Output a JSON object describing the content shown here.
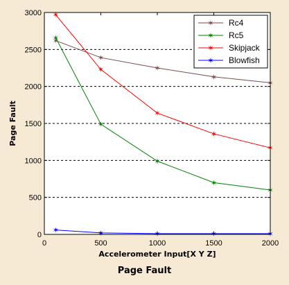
{
  "caption": "Page Fault",
  "chart_data": {
    "type": "line",
    "title": "",
    "xlabel": "Accelerometer Input[X Y Z]",
    "ylabel": "Page Fault",
    "x": [
      100,
      500,
      1000,
      1500,
      2000
    ],
    "xlim": [
      0,
      2000
    ],
    "ylim": [
      0,
      3000
    ],
    "xticks": [
      0,
      500,
      1000,
      1500,
      2000
    ],
    "yticks": [
      0,
      500,
      1000,
      1500,
      2000,
      2500,
      3000
    ],
    "grid": "horizontal dashed",
    "legend_position": "top-right",
    "series": [
      {
        "name": "Rc4",
        "color": "#7a4a4a",
        "values": [
          2620,
          2390,
          2250,
          2130,
          2050
        ]
      },
      {
        "name": "Rc5",
        "color": "#008000",
        "values": [
          2660,
          1490,
          990,
          700,
          600
        ]
      },
      {
        "name": "Skipjack",
        "color": "#ff0000",
        "values": [
          2970,
          2230,
          1640,
          1360,
          1170
        ]
      },
      {
        "name": "Blowfish",
        "color": "#0000ff",
        "values": [
          60,
          20,
          10,
          10,
          10
        ]
      }
    ]
  }
}
